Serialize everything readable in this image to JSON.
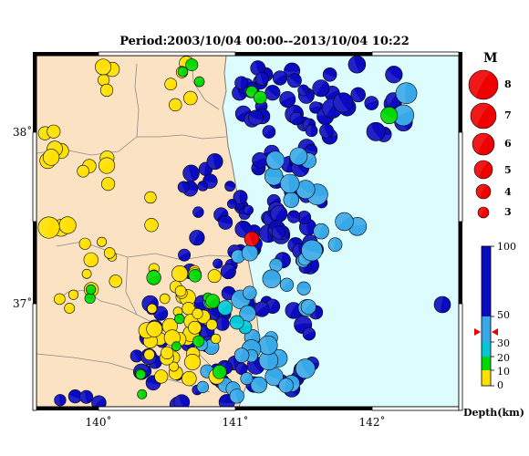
{
  "title": "Period:2003/10/04 00:00--2013/10/04 10:22",
  "axes": {
    "lat_labels": [
      {
        "value": 37,
        "text": "37˚"
      },
      {
        "value": 38,
        "text": "38˚"
      }
    ],
    "lon_labels": [
      {
        "value": 140,
        "text": "140˚"
      },
      {
        "value": 141,
        "text": "141˚"
      },
      {
        "value": 142,
        "text": "142˚"
      }
    ],
    "lon_range": [
      139.6,
      142.6
    ],
    "lat_range": [
      36.4,
      38.4
    ]
  },
  "colors": {
    "land": "#fbe2c2",
    "sea": "#dcfcfe",
    "coast": "#7a7a7a",
    "frame": "#000000",
    "shallow": "#ffe000",
    "d10_20": "#00d800",
    "d20_30": "#00c8d8",
    "d30_50": "#38a8e8",
    "deep": "#0a0ac0",
    "highlight": "#ee0000"
  },
  "legend": {
    "magnitude_title": "M",
    "magnitudes": [
      "8",
      "7",
      "6",
      "5",
      "4",
      "3"
    ],
    "depth_ticks": [
      "100",
      "50",
      "30",
      "20",
      "10",
      "0"
    ],
    "depth_label": "Depth(km)"
  }
}
